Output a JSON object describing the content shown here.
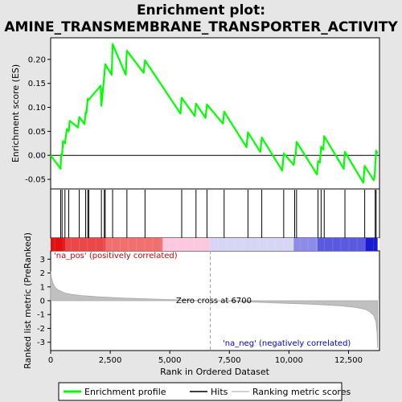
{
  "title_line1": "Enrichment plot:",
  "title_line2": "AMINE_TRANSMEMBRANE_TRANSPORTER_ACTIVITY",
  "colors": {
    "enrichment_line": "#00ff00",
    "hits": "#000000",
    "ranking_fill": "#c0c0c0",
    "zero_cross_line": "#a0a0a0",
    "pos_label": "#cc0000",
    "neg_label": "#0000cc"
  },
  "chart_data": [
    {
      "type": "line",
      "name": "enrichment-profile",
      "ylabel": "Enrichment score (ES)",
      "xlim": [
        0,
        13800
      ],
      "ylim": [
        -0.07,
        0.245
      ],
      "yticks": [
        -0.05,
        0.0,
        0.05,
        0.1,
        0.15,
        0.2
      ],
      "ytick_labels": [
        "-0.05",
        "0.00",
        "0.05",
        "0.10",
        "0.15",
        "0.20"
      ],
      "grid": false,
      "series": [
        {
          "x": [
            0,
            420,
            440,
            480,
            520,
            600,
            680,
            760,
            800,
            1150,
            1200,
            1420,
            1470,
            1500,
            1560,
            1600,
            2100,
            2130,
            2200,
            2250,
            2290,
            2560,
            2600,
            3150,
            3200,
            3900,
            3960,
            5450,
            5500,
            6050,
            6100,
            6500,
            6560,
            7230,
            7280,
            8220,
            8280,
            8800,
            8860,
            9720,
            9780,
            10200,
            10240,
            10280,
            10320,
            11180,
            11220,
            11300,
            11350,
            11440,
            11480,
            12300,
            12350,
            13120,
            13180,
            13560,
            13600,
            13620,
            13660,
            13720
          ],
          "y": [
            0.0,
            -0.028,
            0.002,
            0.0,
            0.03,
            0.025,
            0.055,
            0.05,
            0.072,
            0.058,
            0.08,
            0.065,
            0.09,
            0.088,
            0.118,
            0.116,
            0.145,
            0.103,
            0.14,
            0.165,
            0.19,
            0.168,
            0.232,
            0.168,
            0.218,
            0.172,
            0.198,
            0.087,
            0.12,
            0.082,
            0.108,
            0.078,
            0.106,
            0.066,
            0.091,
            0.017,
            0.048,
            0.007,
            0.037,
            -0.032,
            0.004,
            -0.02,
            -0.003,
            0.0,
            0.028,
            -0.04,
            -0.012,
            -0.015,
            0.018,
            0.012,
            0.04,
            -0.028,
            0.007,
            -0.057,
            -0.022,
            -0.052,
            -0.045,
            -0.02,
            0.01,
            0.004
          ]
        }
      ]
    },
    {
      "type": "scatter",
      "name": "hits",
      "hit_positions": [
        420,
        480,
        600,
        760,
        1200,
        1470,
        1560,
        1600,
        2130,
        2250,
        2290,
        2600,
        3200,
        3960,
        5500,
        6100,
        6560,
        7280,
        8280,
        8860,
        9780,
        10240,
        10320,
        11220,
        11350,
        11480,
        12350,
        13180,
        13620,
        13660
      ]
    },
    {
      "type": "area",
      "name": "ranked-list-metric",
      "xlabel": "Rank in Ordered Dataset",
      "ylabel": "Ranked list metric (PreRanked)",
      "xlim": [
        0,
        13800
      ],
      "ylim": [
        -3.6,
        3.6
      ],
      "xticks": [
        0,
        2500,
        5000,
        7500,
        10000,
        12500
      ],
      "xtick_labels": [
        "0",
        "2,500",
        "5,000",
        "7,500",
        "10,000",
        "12,500"
      ],
      "yticks": [
        -3,
        -2,
        -1,
        0,
        1,
        2,
        3
      ],
      "ytick_labels": [
        "-3",
        "-2",
        "-1",
        "0",
        "1",
        "2",
        "3"
      ],
      "series": [
        {
          "x": [
            0,
            30,
            80,
            150,
            250,
            400,
            600,
            900,
            1300,
            2000,
            3000,
            4000,
            5000,
            6000,
            6700,
            7500,
            8500,
            9500,
            10500,
            11500,
            12200,
            12800,
            13200,
            13400,
            13550,
            13650,
            13700,
            13720
          ],
          "y": [
            2.1,
            1.7,
            1.35,
            1.05,
            0.85,
            0.7,
            0.55,
            0.45,
            0.37,
            0.28,
            0.2,
            0.14,
            0.08,
            0.03,
            0.0,
            -0.04,
            -0.1,
            -0.16,
            -0.22,
            -0.3,
            -0.38,
            -0.48,
            -0.62,
            -0.8,
            -1.05,
            -1.5,
            -2.3,
            -3.4
          ]
        }
      ],
      "zero_cross": 6700
    }
  ],
  "annotations": {
    "pos": "'na_pos' (positively correlated)",
    "neg": "'na_neg' (negatively correlated)",
    "zero": "Zero cross at 6700"
  },
  "legend": {
    "items": [
      {
        "label": "Enrichment profile",
        "color": "#00ff00"
      },
      {
        "label": "Hits",
        "color": "#000000"
      },
      {
        "label": "Ranking metric scores",
        "color": "#c0c0c0"
      }
    ]
  }
}
